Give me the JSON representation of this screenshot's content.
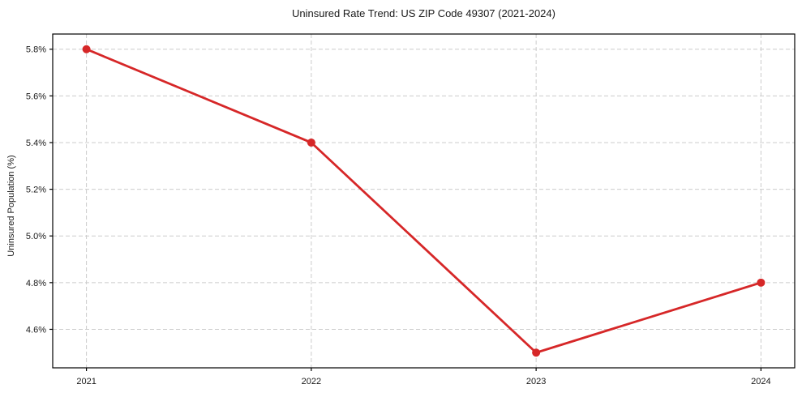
{
  "chart_data": {
    "type": "line",
    "title": "Uninsured Rate Trend: US ZIP Code 49307 (2021-2024)",
    "xlabel": "",
    "ylabel": "Uninsured Population (%)",
    "x": [
      2021,
      2022,
      2023,
      2024
    ],
    "values": [
      5.8,
      5.4,
      4.5,
      4.8
    ],
    "x_tick_labels": [
      "2021",
      "2022",
      "2023",
      "2024"
    ],
    "y_ticks": [
      4.6,
      4.8,
      5.0,
      5.2,
      5.4,
      5.6,
      5.8
    ],
    "y_tick_labels": [
      "4.6%",
      "4.8%",
      "5.0%",
      "5.2%",
      "5.4%",
      "5.6%",
      "5.8%"
    ],
    "xlim": [
      2020.85,
      2024.15
    ],
    "ylim": [
      4.435,
      5.865
    ],
    "grid": true,
    "grid_style": "dashed",
    "legend_position": "none",
    "line_color": "#d62728",
    "marker": "circle",
    "grid_color": "#cccccc",
    "axis_color": "#000000",
    "text_color": "#1a1a1a"
  }
}
